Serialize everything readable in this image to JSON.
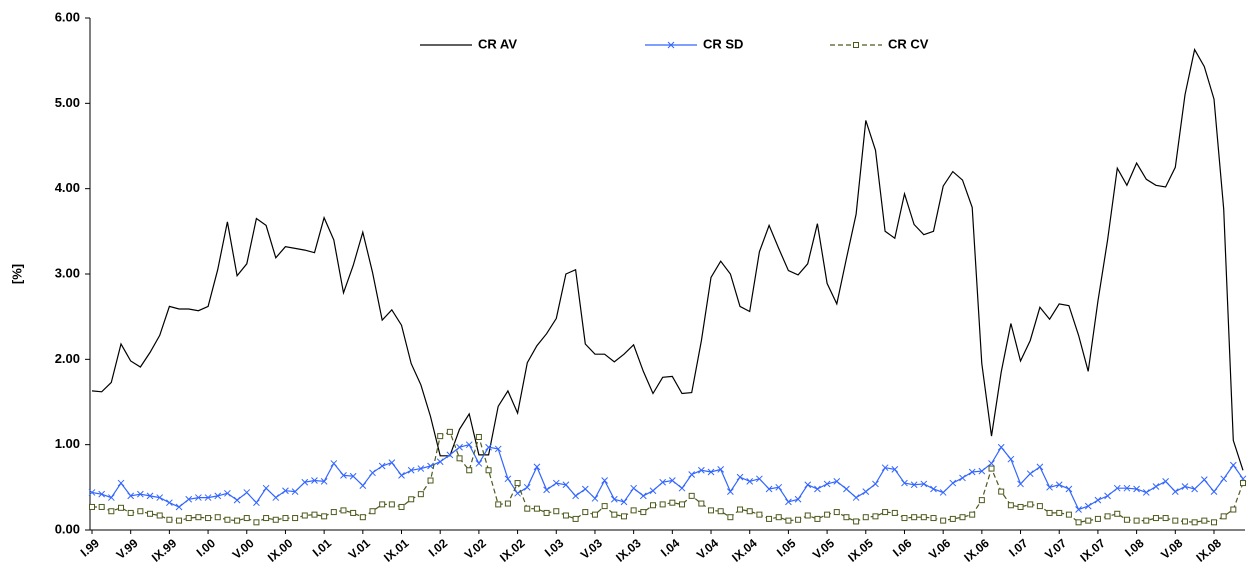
{
  "chart_data": {
    "type": "line",
    "ylabel": "[%]",
    "categories": [
      "I.99",
      null,
      null,
      null,
      "V.99",
      null,
      null,
      null,
      "IX.99",
      null,
      null,
      null,
      "I.00",
      null,
      null,
      null,
      "V.00",
      null,
      null,
      null,
      "IX.00",
      null,
      null,
      null,
      "I.01",
      null,
      null,
      null,
      "V.01",
      null,
      null,
      null,
      "IX.01",
      null,
      null,
      null,
      "I.02",
      null,
      null,
      null,
      "V.02",
      null,
      null,
      null,
      "IX.02",
      null,
      null,
      null,
      "I.03",
      null,
      null,
      null,
      "V.03",
      null,
      null,
      null,
      "IX.03",
      null,
      null,
      null,
      "I.04",
      null,
      null,
      null,
      "V.04",
      null,
      null,
      null,
      "IX.04",
      null,
      null,
      null,
      "I.05",
      null,
      null,
      null,
      "V.05",
      null,
      null,
      null,
      "IX.05",
      null,
      null,
      null,
      "I.06",
      null,
      null,
      null,
      "V.06",
      null,
      null,
      null,
      "IX.06",
      null,
      null,
      null,
      "I.07",
      null,
      null,
      null,
      "V.07",
      null,
      null,
      null,
      "IX.07",
      null,
      null,
      null,
      "I.08",
      null,
      null,
      null,
      "V.08",
      null,
      null,
      null,
      "IX.08",
      null,
      null,
      null
    ],
    "series": [
      {
        "name": "CR AV",
        "color": "#000000",
        "dash": false,
        "marker": "none",
        "values": [
          1.63,
          1.62,
          1.73,
          2.18,
          1.98,
          1.91,
          2.08,
          2.28,
          2.62,
          2.59,
          2.59,
          2.57,
          2.62,
          3.05,
          3.61,
          2.98,
          3.12,
          3.65,
          3.57,
          3.19,
          3.32,
          3.3,
          3.28,
          3.25,
          3.66,
          3.4,
          2.78,
          3.1,
          3.49,
          3.02,
          2.46,
          2.58,
          2.4,
          1.95,
          1.7,
          1.33,
          0.87,
          0.87,
          1.18,
          1.36,
          0.88,
          0.88,
          1.45,
          1.63,
          1.37,
          1.96,
          2.16,
          2.3,
          2.48,
          3.0,
          3.05,
          2.18,
          2.06,
          2.06,
          1.97,
          2.06,
          2.17,
          1.86,
          1.6,
          1.79,
          1.8,
          1.6,
          1.61,
          2.22,
          2.96,
          3.15,
          3.0,
          2.62,
          2.56,
          3.26,
          3.57,
          3.3,
          3.04,
          2.99,
          3.12,
          3.59,
          2.89,
          2.65,
          3.18,
          3.7,
          4.8,
          4.45,
          3.5,
          3.42,
          3.94,
          3.58,
          3.46,
          3.5,
          4.03,
          4.2,
          4.1,
          3.78,
          1.95,
          1.1,
          1.85,
          2.42,
          1.98,
          2.22,
          2.61,
          2.47,
          2.65,
          2.63,
          2.28,
          1.86,
          2.68,
          3.4,
          4.24,
          4.04,
          4.3,
          4.11,
          4.04,
          4.02,
          4.25,
          5.1,
          5.63,
          5.43,
          5.05,
          3.76,
          1.05,
          0.7
        ]
      },
      {
        "name": "CR SD",
        "color": "#3366ff",
        "dash": false,
        "marker": "x",
        "values": [
          0.44,
          0.42,
          0.38,
          0.55,
          0.4,
          0.42,
          0.4,
          0.38,
          0.32,
          0.27,
          0.36,
          0.38,
          0.38,
          0.4,
          0.43,
          0.35,
          0.44,
          0.32,
          0.49,
          0.38,
          0.46,
          0.45,
          0.56,
          0.58,
          0.57,
          0.78,
          0.64,
          0.63,
          0.52,
          0.67,
          0.75,
          0.79,
          0.64,
          0.7,
          0.72,
          0.75,
          0.8,
          0.88,
          0.97,
          1.0,
          0.78,
          0.97,
          0.95,
          0.6,
          0.43,
          0.5,
          0.74,
          0.47,
          0.55,
          0.53,
          0.4,
          0.48,
          0.37,
          0.58,
          0.36,
          0.33,
          0.49,
          0.4,
          0.46,
          0.56,
          0.58,
          0.49,
          0.65,
          0.7,
          0.68,
          0.71,
          0.45,
          0.62,
          0.57,
          0.6,
          0.48,
          0.5,
          0.33,
          0.36,
          0.53,
          0.48,
          0.54,
          0.57,
          0.48,
          0.38,
          0.45,
          0.54,
          0.73,
          0.71,
          0.55,
          0.53,
          0.54,
          0.48,
          0.44,
          0.55,
          0.61,
          0.68,
          0.69,
          0.78,
          0.97,
          0.83,
          0.54,
          0.66,
          0.74,
          0.5,
          0.53,
          0.48,
          0.24,
          0.28,
          0.35,
          0.4,
          0.49,
          0.49,
          0.48,
          0.44,
          0.51,
          0.57,
          0.45,
          0.51,
          0.48,
          0.59,
          0.45,
          0.6,
          0.76,
          0.6
        ]
      },
      {
        "name": "CR CV",
        "color": "#4d5a1e",
        "dash": true,
        "marker": "square",
        "values": [
          0.27,
          0.27,
          0.22,
          0.26,
          0.2,
          0.22,
          0.19,
          0.17,
          0.12,
          0.11,
          0.14,
          0.15,
          0.14,
          0.15,
          0.12,
          0.11,
          0.14,
          0.09,
          0.14,
          0.12,
          0.14,
          0.14,
          0.17,
          0.18,
          0.16,
          0.21,
          0.23,
          0.2,
          0.15,
          0.22,
          0.3,
          0.3,
          0.27,
          0.36,
          0.42,
          0.58,
          1.1,
          1.15,
          0.84,
          0.7,
          1.09,
          0.7,
          0.3,
          0.31,
          0.55,
          0.25,
          0.25,
          0.2,
          0.22,
          0.17,
          0.13,
          0.21,
          0.18,
          0.28,
          0.18,
          0.16,
          0.23,
          0.21,
          0.29,
          0.3,
          0.32,
          0.3,
          0.4,
          0.31,
          0.23,
          0.22,
          0.15,
          0.24,
          0.22,
          0.18,
          0.13,
          0.15,
          0.11,
          0.12,
          0.17,
          0.13,
          0.18,
          0.21,
          0.15,
          0.1,
          0.15,
          0.16,
          0.21,
          0.2,
          0.14,
          0.15,
          0.15,
          0.14,
          0.11,
          0.13,
          0.15,
          0.18,
          0.35,
          0.72,
          0.45,
          0.29,
          0.27,
          0.3,
          0.28,
          0.2,
          0.2,
          0.18,
          0.09,
          0.11,
          0.13,
          0.16,
          0.19,
          0.12,
          0.11,
          0.11,
          0.14,
          0.14,
          0.11,
          0.1,
          0.09,
          0.11,
          0.09,
          0.16,
          0.24,
          0.55
        ]
      }
    ],
    "ylim": [
      0,
      6
    ],
    "yticks": [
      {
        "value": 0,
        "label": "0.00"
      },
      {
        "value": 1,
        "label": "1.00"
      },
      {
        "value": 2,
        "label": "2.00"
      },
      {
        "value": 3,
        "label": "3.00"
      },
      {
        "value": 4,
        "label": "4.00"
      },
      {
        "value": 5,
        "label": "5.00"
      },
      {
        "value": 6,
        "label": "6.00"
      }
    ],
    "grid": false,
    "legend": "top"
  }
}
